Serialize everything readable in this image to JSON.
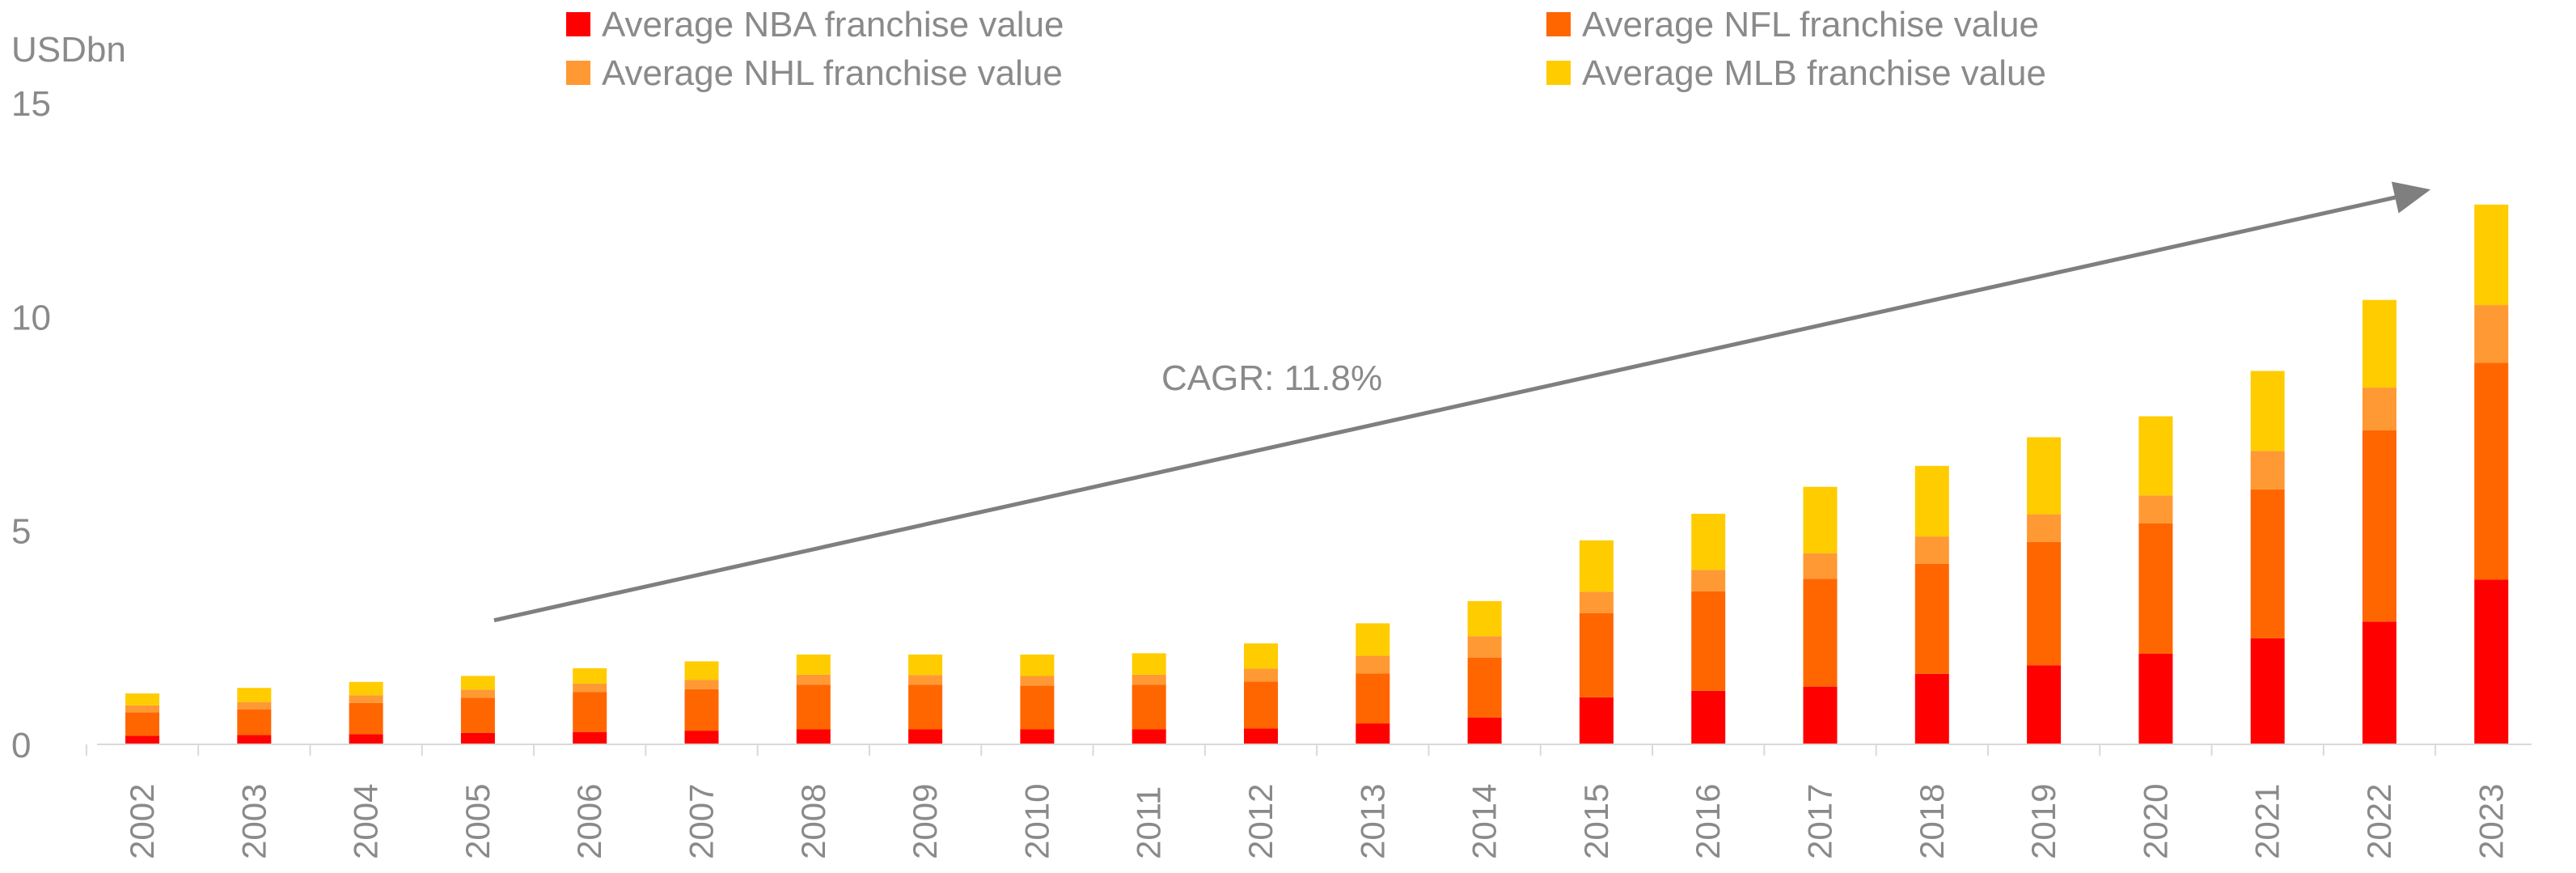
{
  "chart_data": {
    "type": "bar",
    "stacked": true,
    "ylabel": "USDbn",
    "ylim": [
      0,
      15
    ],
    "yticks": [
      0,
      5,
      10,
      15
    ],
    "categories": [
      "2002",
      "2003",
      "2004",
      "2005",
      "2006",
      "2007",
      "2008",
      "2009",
      "2010",
      "2011",
      "2012",
      "2013",
      "2014",
      "2015",
      "2016",
      "2017",
      "2018",
      "2019",
      "2020",
      "2021",
      "2022",
      "2023"
    ],
    "series": [
      {
        "name": "Average NBA franchise value",
        "color": "#ff0000",
        "values": [
          0.2,
          0.22,
          0.24,
          0.27,
          0.29,
          0.32,
          0.35,
          0.35,
          0.35,
          0.35,
          0.37,
          0.49,
          0.63,
          1.1,
          1.25,
          1.35,
          1.65,
          1.85,
          2.12,
          2.48,
          2.87,
          3.85
        ]
      },
      {
        "name": "Average NFL franchise value",
        "color": "#ff6600",
        "values": [
          0.55,
          0.6,
          0.73,
          0.82,
          0.93,
          0.97,
          1.04,
          1.04,
          1.02,
          1.04,
          1.1,
          1.17,
          1.4,
          1.97,
          2.33,
          2.52,
          2.57,
          2.88,
          3.05,
          3.48,
          4.47,
          5.07
        ]
      },
      {
        "name": "Average NHL franchise value",
        "color": "#ff9933",
        "values": [
          0.16,
          0.17,
          0.18,
          0.19,
          0.2,
          0.22,
          0.24,
          0.23,
          0.23,
          0.24,
          0.3,
          0.41,
          0.5,
          0.5,
          0.5,
          0.6,
          0.64,
          0.65,
          0.65,
          0.9,
          1.0,
          1.35
        ]
      },
      {
        "name": "Average MLB franchise value",
        "color": "#ffcc00",
        "values": [
          0.28,
          0.33,
          0.31,
          0.32,
          0.36,
          0.43,
          0.47,
          0.48,
          0.5,
          0.5,
          0.59,
          0.76,
          0.82,
          1.2,
          1.31,
          1.55,
          1.65,
          1.8,
          1.85,
          1.87,
          2.05,
          2.35
        ]
      }
    ],
    "annotations": [
      {
        "text": "CAGR: 11.8%",
        "arrow_from": {
          "category": "2005",
          "value": 2.9
        },
        "arrow_to": {
          "category": "2023",
          "value": 12.95
        }
      }
    ],
    "legend_position": "top"
  }
}
